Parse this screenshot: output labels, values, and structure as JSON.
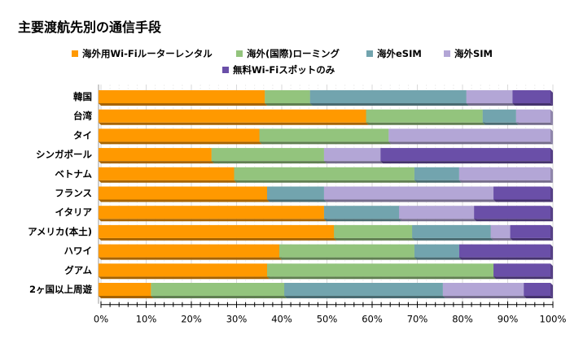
{
  "chart_data": {
    "type": "bar",
    "orientation": "horizontal",
    "stacked": "percent",
    "title": "主要渡航先別の通信手段",
    "categories": [
      "韓国",
      "台湾",
      "タイ",
      "シンガポール",
      "ベトナム",
      "フランス",
      "イタリア",
      "アメリカ(本土)",
      "ハワイ",
      "グアム",
      "2ヶ国以上周遊"
    ],
    "series": [
      {
        "name": "海外用Wi-Fiルーターレンタル",
        "color": "#FF9900",
        "values": [
          36.8,
          59.2,
          35.6,
          25.0,
          30.0,
          37.3,
          49.9,
          52.1,
          40.0,
          37.3,
          11.6
        ]
      },
      {
        "name": "海外(国際)ローミング",
        "color": "#93C47D",
        "values": [
          10.0,
          25.8,
          28.6,
          24.9,
          39.9,
          0,
          0,
          17.3,
          29.9,
          50.1,
          29.5
        ]
      },
      {
        "name": "海外eSIM",
        "color": "#72A4AE",
        "values": [
          34.6,
          7.4,
          0,
          0,
          9.9,
          12.6,
          16.6,
          17.4,
          9.9,
          0,
          35.1
        ]
      },
      {
        "name": "海外SIM",
        "color": "#B3A6D6",
        "values": [
          10.2,
          7.6,
          35.8,
          12.5,
          20.2,
          37.5,
          16.6,
          4.3,
          0,
          0,
          17.9
        ]
      },
      {
        "name": "無料Wi-Fiスポットのみ",
        "color": "#6A4FA8",
        "values": [
          8.4,
          0,
          0,
          37.6,
          0,
          12.6,
          16.9,
          8.9,
          20.2,
          12.6,
          5.9
        ]
      }
    ],
    "xlim": [
      0,
      100
    ],
    "xticks": [
      "0%",
      "10%",
      "20%",
      "30%",
      "40%",
      "50%",
      "60%",
      "70%",
      "80%",
      "90%",
      "100%"
    ],
    "grid": true,
    "legend": "top"
  }
}
